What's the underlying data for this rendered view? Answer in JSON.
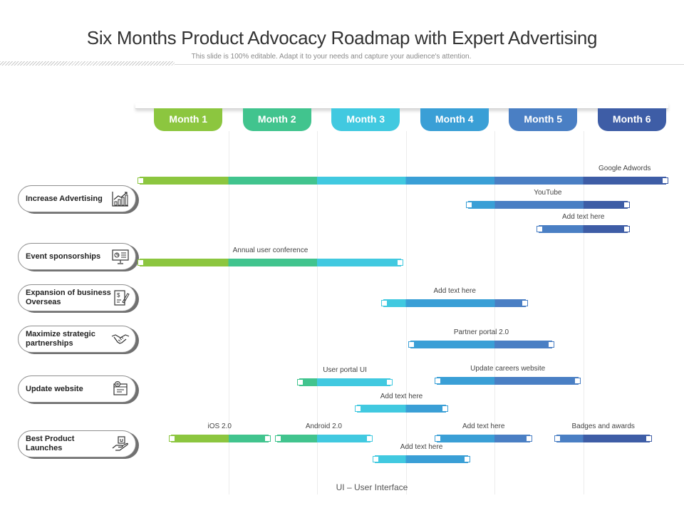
{
  "title": "Six Months Product Advocacy Roadmap with Expert Advertising",
  "subtitle": "This slide is 100% editable. Adapt it to your needs and capture your audience's attention.",
  "footnote": "UI – User Interface",
  "colors": {
    "month1": "#8cc63f",
    "month2": "#41c48e",
    "month3": "#41c9e0",
    "month4": "#3a9fd6",
    "month5": "#4a7fc4",
    "month6": "#3e5da6"
  },
  "months": [
    "Month 1",
    "Month 2",
    "Month 3",
    "Month 4",
    "Month 5",
    "Month 6"
  ],
  "categories": [
    {
      "label": "Increase Advertising",
      "icon": "growth-chart-icon"
    },
    {
      "label": "Event sponsorships",
      "icon": "presentation-board-icon"
    },
    {
      "label": "Expansion of business Overseas",
      "icon": "document-signature-icon"
    },
    {
      "label": "Maximize strategic partnerships",
      "icon": "handshake-icon"
    },
    {
      "label": "Update website",
      "icon": "website-gear-icon"
    },
    {
      "label": "Best Product Launches",
      "icon": "product-hand-icon"
    }
  ],
  "tasks": [
    {
      "label": "Google Adwords",
      "start_month": 1.0,
      "end_month": 7.0
    },
    {
      "label": "YouTube",
      "start_month": 4.7,
      "end_month": 6.5
    },
    {
      "label": "Add text here",
      "start_month": 5.5,
      "end_month": 6.5
    },
    {
      "label": "Annual user conference",
      "start_month": 1.0,
      "end_month": 3.95
    },
    {
      "label": "Add text here",
      "start_month": 3.75,
      "end_month": 5.35
    },
    {
      "label": "Partner portal 2.0",
      "start_month": 4.05,
      "end_month": 5.65
    },
    {
      "label": "User portal UI",
      "start_month": 2.8,
      "end_month": 3.83
    },
    {
      "label": "Update careers website",
      "start_month": 4.35,
      "end_month": 5.95
    },
    {
      "label": "Add text here",
      "start_month": 3.45,
      "end_month": 4.45
    },
    {
      "label": "iOS 2.0",
      "start_month": 1.35,
      "end_month": 2.45
    },
    {
      "label": "Android 2.0",
      "start_month": 2.55,
      "end_month": 3.6
    },
    {
      "label": "Add text here",
      "start_month": 4.35,
      "end_month": 5.4
    },
    {
      "label": "Badges and awards",
      "start_month": 5.7,
      "end_month": 6.75
    },
    {
      "label": "Add text here",
      "start_month": 3.65,
      "end_month": 4.7
    }
  ]
}
